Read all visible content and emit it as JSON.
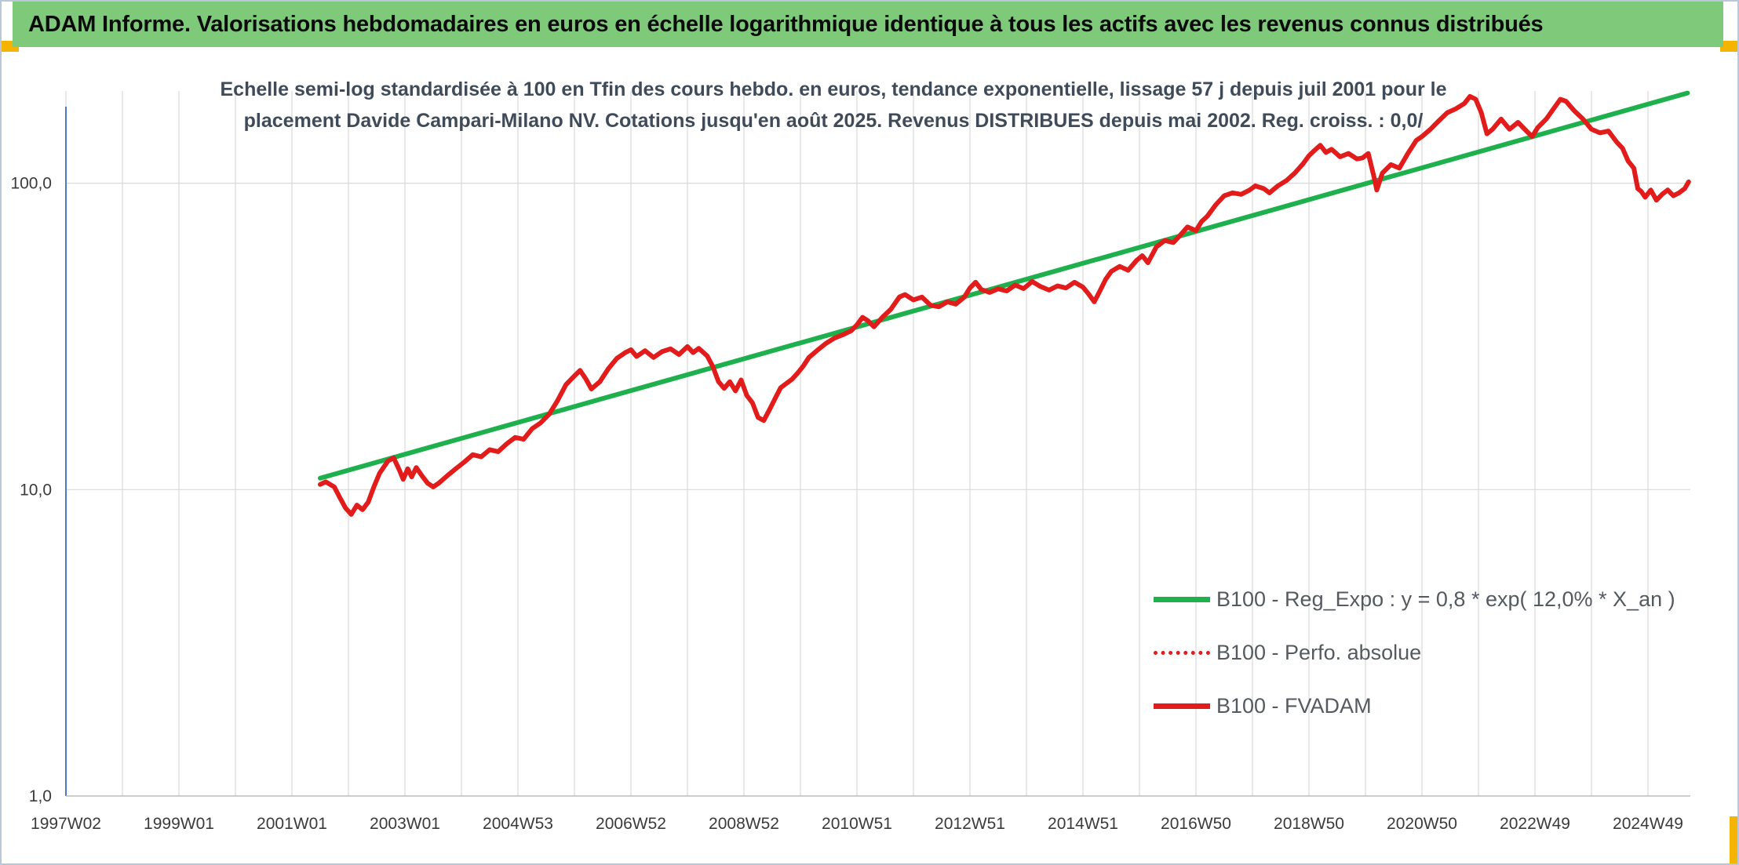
{
  "banner": {
    "title": "ADAM Informe. Valorisations hebdomadaires en euros en échelle logarithmique identique à tous les actifs avec les revenus connus distribués"
  },
  "colors": {
    "banner_bg": "#7fc97a",
    "regression": "#1db04c",
    "fvadam": "#e21b1b",
    "grid": "#d9d9d9",
    "axis": "#4a7bbd",
    "corner_accent": "#f4b400"
  },
  "chart_data": {
    "type": "line",
    "title": "Echelle semi-log standardisée à 100 en Tfin des cours hebdo. en euros, tendance exponentielle, lissage 57 j depuis juil 2001 pour le placement Davide Campari-Milano NV. Cotations jusqu'en août 2025. Revenus DISTRIBUES depuis mai 2002. Reg. croiss. : 0,0/",
    "xlabel": "",
    "ylabel": "",
    "yscale": "log",
    "ylim": [
      1,
      200
    ],
    "xlim": [
      1997.0,
      2025.75
    ],
    "grid": true,
    "legend_position": "bottom-right",
    "y_ticks": [
      {
        "value": 1,
        "label": "1,0"
      },
      {
        "value": 10,
        "label": "10,0"
      },
      {
        "value": 100,
        "label": "100,0"
      }
    ],
    "x_ticks": [
      {
        "value": 1997.0,
        "label": "1997W02"
      },
      {
        "value": 1999.0,
        "label": "1999W01"
      },
      {
        "value": 2001.0,
        "label": "2001W01"
      },
      {
        "value": 2003.0,
        "label": "2003W01"
      },
      {
        "value": 2005.0,
        "label": "2004W53"
      },
      {
        "value": 2007.0,
        "label": "2006W52"
      },
      {
        "value": 2009.0,
        "label": "2008W52"
      },
      {
        "value": 2011.0,
        "label": "2010W51"
      },
      {
        "value": 2013.0,
        "label": "2012W51"
      },
      {
        "value": 2015.0,
        "label": "2014W51"
      },
      {
        "value": 2017.0,
        "label": "2016W50"
      },
      {
        "value": 2019.0,
        "label": "2018W50"
      },
      {
        "value": 2021.0,
        "label": "2020W50"
      },
      {
        "value": 2023.0,
        "label": "2022W49"
      },
      {
        "value": 2025.0,
        "label": "2024W49"
      }
    ],
    "series": [
      {
        "name": "B100 - Reg_Expo : y = 0,8 * exp( 12,0% *  X_an )",
        "style": "solid",
        "color": "#1db04c",
        "points": [
          [
            2001.5,
            10.9
          ],
          [
            2025.7,
            197
          ]
        ]
      },
      {
        "name": "B100 - Perfo. absolue",
        "style": "dotted",
        "color": "#e21b1b",
        "points": []
      },
      {
        "name": "B100 - FVADAM",
        "style": "solid",
        "color": "#e21b1b",
        "points": [
          [
            2001.5,
            10.4
          ],
          [
            2001.6,
            10.6
          ],
          [
            2001.75,
            10.2
          ],
          [
            2001.85,
            9.4
          ],
          [
            2001.95,
            8.7
          ],
          [
            2002.05,
            8.3
          ],
          [
            2002.15,
            8.9
          ],
          [
            2002.25,
            8.6
          ],
          [
            2002.35,
            9.1
          ],
          [
            2002.45,
            10.2
          ],
          [
            2002.55,
            11.3
          ],
          [
            2002.7,
            12.4
          ],
          [
            2002.8,
            12.7
          ],
          [
            2002.9,
            11.6
          ],
          [
            2002.97,
            10.8
          ],
          [
            2003.05,
            11.7
          ],
          [
            2003.12,
            11.0
          ],
          [
            2003.2,
            11.8
          ],
          [
            2003.3,
            11.1
          ],
          [
            2003.4,
            10.5
          ],
          [
            2003.5,
            10.2
          ],
          [
            2003.6,
            10.5
          ],
          [
            2003.75,
            11.1
          ],
          [
            2003.9,
            11.7
          ],
          [
            2004.05,
            12.3
          ],
          [
            2004.2,
            13.0
          ],
          [
            2004.35,
            12.8
          ],
          [
            2004.5,
            13.5
          ],
          [
            2004.65,
            13.3
          ],
          [
            2004.8,
            14.1
          ],
          [
            2004.95,
            14.8
          ],
          [
            2005.1,
            14.6
          ],
          [
            2005.25,
            15.8
          ],
          [
            2005.4,
            16.5
          ],
          [
            2005.55,
            17.6
          ],
          [
            2005.7,
            19.5
          ],
          [
            2005.85,
            22.0
          ],
          [
            2006.0,
            23.5
          ],
          [
            2006.1,
            24.5
          ],
          [
            2006.2,
            23.0
          ],
          [
            2006.3,
            21.3
          ],
          [
            2006.45,
            22.5
          ],
          [
            2006.6,
            24.8
          ],
          [
            2006.75,
            26.8
          ],
          [
            2006.9,
            28.0
          ],
          [
            2007.0,
            28.6
          ],
          [
            2007.1,
            27.2
          ],
          [
            2007.25,
            28.4
          ],
          [
            2007.4,
            27.0
          ],
          [
            2007.55,
            28.2
          ],
          [
            2007.7,
            28.8
          ],
          [
            2007.85,
            27.6
          ],
          [
            2008.0,
            29.3
          ],
          [
            2008.1,
            28.0
          ],
          [
            2008.2,
            28.9
          ],
          [
            2008.35,
            27.3
          ],
          [
            2008.45,
            25.2
          ],
          [
            2008.55,
            22.5
          ],
          [
            2008.65,
            21.4
          ],
          [
            2008.75,
            22.5
          ],
          [
            2008.85,
            21.0
          ],
          [
            2008.95,
            22.8
          ],
          [
            2009.05,
            20.3
          ],
          [
            2009.15,
            19.2
          ],
          [
            2009.25,
            17.2
          ],
          [
            2009.35,
            16.8
          ],
          [
            2009.45,
            18.2
          ],
          [
            2009.55,
            19.8
          ],
          [
            2009.65,
            21.5
          ],
          [
            2009.75,
            22.2
          ],
          [
            2009.85,
            22.9
          ],
          [
            2009.95,
            24.0
          ],
          [
            2010.05,
            25.3
          ],
          [
            2010.15,
            27.0
          ],
          [
            2010.3,
            28.5
          ],
          [
            2010.45,
            30.0
          ],
          [
            2010.6,
            31.2
          ],
          [
            2010.75,
            32.0
          ],
          [
            2010.9,
            33.0
          ],
          [
            2011.0,
            34.5
          ],
          [
            2011.1,
            36.5
          ],
          [
            2011.2,
            35.5
          ],
          [
            2011.3,
            34.0
          ],
          [
            2011.45,
            36.5
          ],
          [
            2011.6,
            38.8
          ],
          [
            2011.75,
            42.5
          ],
          [
            2011.85,
            43.3
          ],
          [
            2012.0,
            41.6
          ],
          [
            2012.15,
            42.5
          ],
          [
            2012.3,
            40.0
          ],
          [
            2012.45,
            39.5
          ],
          [
            2012.6,
            41.0
          ],
          [
            2012.75,
            40.3
          ],
          [
            2012.9,
            42.5
          ],
          [
            2013.0,
            45.5
          ],
          [
            2013.1,
            47.5
          ],
          [
            2013.2,
            45.0
          ],
          [
            2013.35,
            44.0
          ],
          [
            2013.5,
            45.2
          ],
          [
            2013.65,
            44.5
          ],
          [
            2013.8,
            46.5
          ],
          [
            2013.95,
            45.3
          ],
          [
            2014.1,
            47.8
          ],
          [
            2014.25,
            46.0
          ],
          [
            2014.4,
            44.8
          ],
          [
            2014.55,
            46.2
          ],
          [
            2014.7,
            45.5
          ],
          [
            2014.85,
            47.5
          ],
          [
            2015.0,
            45.8
          ],
          [
            2015.1,
            43.5
          ],
          [
            2015.2,
            41.0
          ],
          [
            2015.3,
            44.5
          ],
          [
            2015.4,
            48.5
          ],
          [
            2015.5,
            51.5
          ],
          [
            2015.65,
            53.5
          ],
          [
            2015.8,
            52.0
          ],
          [
            2015.95,
            56.0
          ],
          [
            2016.05,
            58.0
          ],
          [
            2016.15,
            55.0
          ],
          [
            2016.3,
            62.0
          ],
          [
            2016.45,
            65.0
          ],
          [
            2016.6,
            64.0
          ],
          [
            2016.7,
            67.0
          ],
          [
            2016.85,
            72.0
          ],
          [
            2017.0,
            70.0
          ],
          [
            2017.1,
            75.0
          ],
          [
            2017.2,
            78.0
          ],
          [
            2017.35,
            85.0
          ],
          [
            2017.5,
            91.0
          ],
          [
            2017.65,
            93.0
          ],
          [
            2017.8,
            92.0
          ],
          [
            2017.95,
            95.0
          ],
          [
            2018.05,
            98.0
          ],
          [
            2018.2,
            96.0
          ],
          [
            2018.3,
            93.0
          ],
          [
            2018.45,
            98.0
          ],
          [
            2018.6,
            102.0
          ],
          [
            2018.75,
            108.0
          ],
          [
            2018.9,
            116.0
          ],
          [
            2019.0,
            123.0
          ],
          [
            2019.1,
            128.0
          ],
          [
            2019.2,
            133.0
          ],
          [
            2019.3,
            126.0
          ],
          [
            2019.4,
            129.0
          ],
          [
            2019.55,
            122.0
          ],
          [
            2019.7,
            125.0
          ],
          [
            2019.85,
            120.0
          ],
          [
            2019.95,
            121.0
          ],
          [
            2020.05,
            125.0
          ],
          [
            2020.15,
            105.0
          ],
          [
            2020.2,
            95.0
          ],
          [
            2020.3,
            108.0
          ],
          [
            2020.45,
            115.0
          ],
          [
            2020.6,
            112.0
          ],
          [
            2020.75,
            125.0
          ],
          [
            2020.9,
            138.0
          ],
          [
            2021.0,
            142.0
          ],
          [
            2021.15,
            150.0
          ],
          [
            2021.3,
            160.0
          ],
          [
            2021.45,
            170.0
          ],
          [
            2021.6,
            175.0
          ],
          [
            2021.75,
            182.0
          ],
          [
            2021.85,
            192.0
          ],
          [
            2021.95,
            188.0
          ],
          [
            2022.05,
            170.0
          ],
          [
            2022.15,
            145.0
          ],
          [
            2022.25,
            150.0
          ],
          [
            2022.4,
            162.0
          ],
          [
            2022.55,
            150.0
          ],
          [
            2022.7,
            158.0
          ],
          [
            2022.85,
            148.0
          ],
          [
            2022.95,
            142.0
          ],
          [
            2023.05,
            152.0
          ],
          [
            2023.2,
            162.0
          ],
          [
            2023.3,
            172.0
          ],
          [
            2023.45,
            188.0
          ],
          [
            2023.55,
            185.0
          ],
          [
            2023.7,
            172.0
          ],
          [
            2023.85,
            162.0
          ],
          [
            2024.0,
            150.0
          ],
          [
            2024.15,
            146.0
          ],
          [
            2024.3,
            148.0
          ],
          [
            2024.45,
            136.0
          ],
          [
            2024.55,
            130.0
          ],
          [
            2024.65,
            118.0
          ],
          [
            2024.75,
            112.0
          ],
          [
            2024.82,
            96.0
          ],
          [
            2024.88,
            94.0
          ],
          [
            2024.95,
            90.0
          ],
          [
            2025.05,
            95.0
          ],
          [
            2025.15,
            88.0
          ],
          [
            2025.25,
            92.0
          ],
          [
            2025.35,
            95.0
          ],
          [
            2025.45,
            91.0
          ],
          [
            2025.55,
            93.0
          ],
          [
            2025.65,
            96.0
          ],
          [
            2025.72,
            101.0
          ]
        ]
      }
    ]
  },
  "legend": {
    "items": [
      {
        "label": "B100 - Reg_Expo : y = 0,8 * exp( 12,0% *  X_an )"
      },
      {
        "label": "B100 - Perfo. absolue"
      },
      {
        "label": "B100 - FVADAM"
      }
    ]
  }
}
